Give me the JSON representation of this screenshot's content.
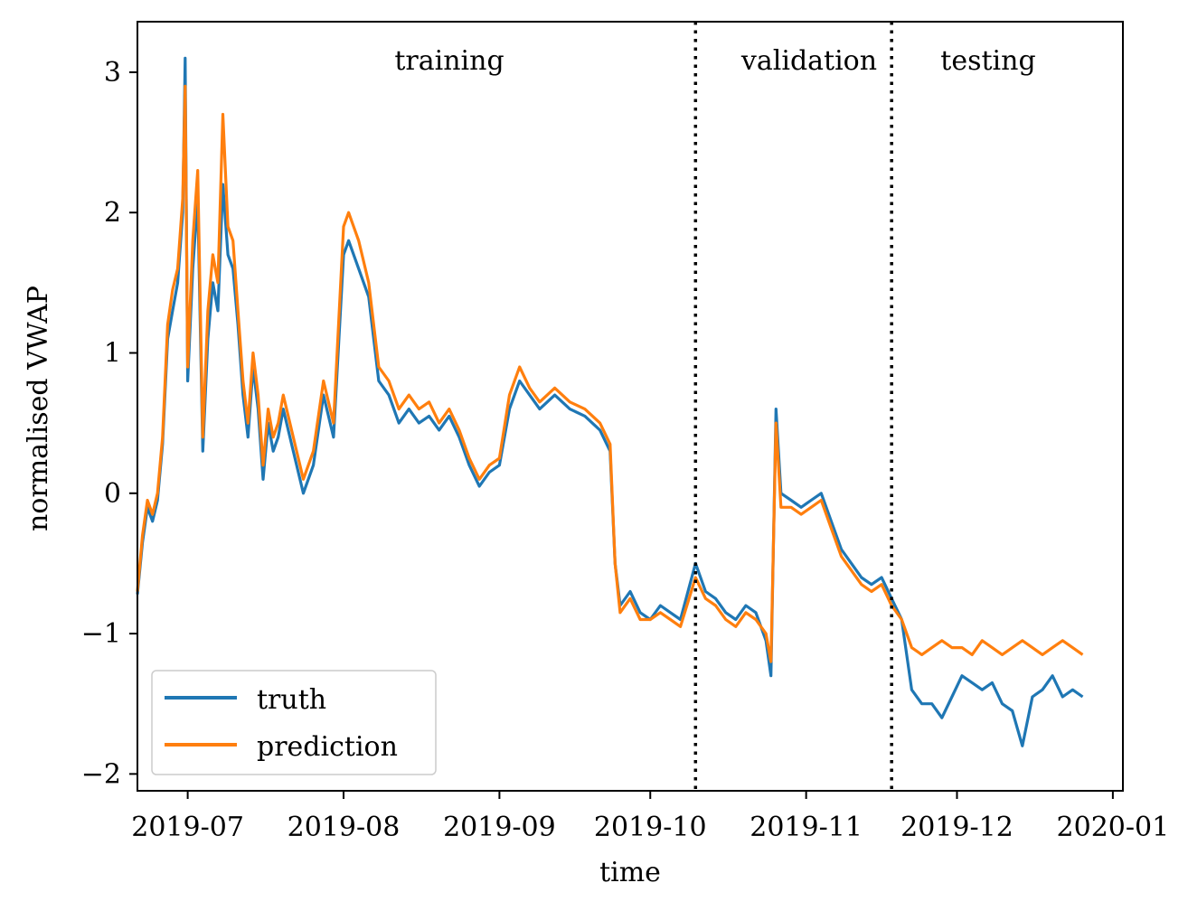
{
  "chart_data": {
    "type": "line",
    "xlabel": "time",
    "ylabel": "normalised VWAP",
    "x_range": [
      "2019-06-21",
      "2020-01-03"
    ],
    "ylim": [
      -2.12,
      3.36
    ],
    "x_ticks": [
      {
        "date": "2019-07-01",
        "label": "2019-07"
      },
      {
        "date": "2019-08-01",
        "label": "2019-08"
      },
      {
        "date": "2019-09-01",
        "label": "2019-09"
      },
      {
        "date": "2019-10-01",
        "label": "2019-10"
      },
      {
        "date": "2019-11-01",
        "label": "2019-11"
      },
      {
        "date": "2019-12-01",
        "label": "2019-12"
      },
      {
        "date": "2020-01-01",
        "label": "2020-01"
      }
    ],
    "y_ticks": [
      {
        "value": 3,
        "label": "3"
      },
      {
        "value": 2,
        "label": "2"
      },
      {
        "value": 1,
        "label": "1"
      },
      {
        "value": 0,
        "label": "0"
      },
      {
        "value": -1,
        "label": "−1"
      },
      {
        "value": -2,
        "label": "−2"
      }
    ],
    "grid": false,
    "legend_position": "lower-left",
    "dividers": [
      "2019-10-10",
      "2019-11-18"
    ],
    "regions": [
      {
        "label": "training"
      },
      {
        "label": "validation"
      },
      {
        "label": "testing"
      }
    ],
    "series": [
      {
        "name": "truth",
        "color": "#1f77b4",
        "points": [
          [
            "2019-06-21",
            -0.72
          ],
          [
            "2019-06-22",
            -0.35
          ],
          [
            "2019-06-23",
            -0.1
          ],
          [
            "2019-06-24",
            -0.2
          ],
          [
            "2019-06-25",
            -0.05
          ],
          [
            "2019-06-26",
            0.35
          ],
          [
            "2019-06-27",
            1.1
          ],
          [
            "2019-06-28",
            1.3
          ],
          [
            "2019-06-29",
            1.5
          ],
          [
            "2019-06-30",
            2.0
          ],
          [
            "2019-06-30T12:00",
            3.1
          ],
          [
            "2019-07-01",
            0.8
          ],
          [
            "2019-07-02",
            1.6
          ],
          [
            "2019-07-03",
            2.1
          ],
          [
            "2019-07-04",
            0.3
          ],
          [
            "2019-07-05",
            1.1
          ],
          [
            "2019-07-06",
            1.5
          ],
          [
            "2019-07-07",
            1.3
          ],
          [
            "2019-07-08",
            2.2
          ],
          [
            "2019-07-09",
            1.7
          ],
          [
            "2019-07-10",
            1.6
          ],
          [
            "2019-07-11",
            1.2
          ],
          [
            "2019-07-12",
            0.7
          ],
          [
            "2019-07-13",
            0.4
          ],
          [
            "2019-07-14",
            0.9
          ],
          [
            "2019-07-15",
            0.6
          ],
          [
            "2019-07-16",
            0.1
          ],
          [
            "2019-07-17",
            0.5
          ],
          [
            "2019-07-18",
            0.3
          ],
          [
            "2019-07-19",
            0.4
          ],
          [
            "2019-07-20",
            0.6
          ],
          [
            "2019-07-22",
            0.3
          ],
          [
            "2019-07-24",
            0.0
          ],
          [
            "2019-07-26",
            0.2
          ],
          [
            "2019-07-28",
            0.7
          ],
          [
            "2019-07-30",
            0.4
          ],
          [
            "2019-08-01",
            1.7
          ],
          [
            "2019-08-02",
            1.8
          ],
          [
            "2019-08-04",
            1.6
          ],
          [
            "2019-08-06",
            1.4
          ],
          [
            "2019-08-08",
            0.8
          ],
          [
            "2019-08-10",
            0.7
          ],
          [
            "2019-08-12",
            0.5
          ],
          [
            "2019-08-14",
            0.6
          ],
          [
            "2019-08-16",
            0.5
          ],
          [
            "2019-08-18",
            0.55
          ],
          [
            "2019-08-20",
            0.45
          ],
          [
            "2019-08-22",
            0.55
          ],
          [
            "2019-08-24",
            0.4
          ],
          [
            "2019-08-26",
            0.2
          ],
          [
            "2019-08-28",
            0.05
          ],
          [
            "2019-08-30",
            0.15
          ],
          [
            "2019-09-01",
            0.2
          ],
          [
            "2019-09-03",
            0.6
          ],
          [
            "2019-09-05",
            0.8
          ],
          [
            "2019-09-07",
            0.7
          ],
          [
            "2019-09-09",
            0.6
          ],
          [
            "2019-09-12",
            0.7
          ],
          [
            "2019-09-15",
            0.6
          ],
          [
            "2019-09-18",
            0.55
          ],
          [
            "2019-09-21",
            0.45
          ],
          [
            "2019-09-23",
            0.3
          ],
          [
            "2019-09-24",
            -0.5
          ],
          [
            "2019-09-25",
            -0.8
          ],
          [
            "2019-09-27",
            -0.7
          ],
          [
            "2019-09-29",
            -0.85
          ],
          [
            "2019-10-01",
            -0.9
          ],
          [
            "2019-10-03",
            -0.8
          ],
          [
            "2019-10-05",
            -0.85
          ],
          [
            "2019-10-07",
            -0.9
          ],
          [
            "2019-10-10",
            -0.5
          ],
          [
            "2019-10-12",
            -0.7
          ],
          [
            "2019-10-14",
            -0.75
          ],
          [
            "2019-10-16",
            -0.85
          ],
          [
            "2019-10-18",
            -0.9
          ],
          [
            "2019-10-20",
            -0.8
          ],
          [
            "2019-10-22",
            -0.85
          ],
          [
            "2019-10-24",
            -1.05
          ],
          [
            "2019-10-25",
            -1.3
          ],
          [
            "2019-10-26",
            0.6
          ],
          [
            "2019-10-27",
            0.0
          ],
          [
            "2019-10-29",
            -0.05
          ],
          [
            "2019-10-31",
            -0.1
          ],
          [
            "2019-11-02",
            -0.05
          ],
          [
            "2019-11-04",
            0.0
          ],
          [
            "2019-11-06",
            -0.2
          ],
          [
            "2019-11-08",
            -0.4
          ],
          [
            "2019-11-10",
            -0.5
          ],
          [
            "2019-11-12",
            -0.6
          ],
          [
            "2019-11-14",
            -0.65
          ],
          [
            "2019-11-16",
            -0.6
          ],
          [
            "2019-11-18",
            -0.75
          ],
          [
            "2019-11-20",
            -0.9
          ],
          [
            "2019-11-22",
            -1.4
          ],
          [
            "2019-11-24",
            -1.5
          ],
          [
            "2019-11-26",
            -1.5
          ],
          [
            "2019-11-28",
            -1.6
          ],
          [
            "2019-11-30",
            -1.45
          ],
          [
            "2019-12-02",
            -1.3
          ],
          [
            "2019-12-04",
            -1.35
          ],
          [
            "2019-12-06",
            -1.4
          ],
          [
            "2019-12-08",
            -1.35
          ],
          [
            "2019-12-10",
            -1.5
          ],
          [
            "2019-12-12",
            -1.55
          ],
          [
            "2019-12-14",
            -1.8
          ],
          [
            "2019-12-16",
            -1.45
          ],
          [
            "2019-12-18",
            -1.4
          ],
          [
            "2019-12-20",
            -1.3
          ],
          [
            "2019-12-22",
            -1.45
          ],
          [
            "2019-12-24",
            -1.4
          ],
          [
            "2019-12-26",
            -1.45
          ]
        ]
      },
      {
        "name": "prediction",
        "color": "#ff7f0e",
        "points": [
          [
            "2019-06-21",
            -0.7
          ],
          [
            "2019-06-22",
            -0.3
          ],
          [
            "2019-06-23",
            -0.05
          ],
          [
            "2019-06-24",
            -0.15
          ],
          [
            "2019-06-25",
            0.0
          ],
          [
            "2019-06-26",
            0.4
          ],
          [
            "2019-06-27",
            1.2
          ],
          [
            "2019-06-28",
            1.45
          ],
          [
            "2019-06-29",
            1.6
          ],
          [
            "2019-06-30",
            2.1
          ],
          [
            "2019-06-30T12:00",
            2.9
          ],
          [
            "2019-07-01",
            0.9
          ],
          [
            "2019-07-02",
            1.8
          ],
          [
            "2019-07-03",
            2.3
          ],
          [
            "2019-07-04",
            0.4
          ],
          [
            "2019-07-05",
            1.3
          ],
          [
            "2019-07-06",
            1.7
          ],
          [
            "2019-07-07",
            1.5
          ],
          [
            "2019-07-08",
            2.7
          ],
          [
            "2019-07-09",
            1.9
          ],
          [
            "2019-07-10",
            1.8
          ],
          [
            "2019-07-11",
            1.3
          ],
          [
            "2019-07-12",
            0.8
          ],
          [
            "2019-07-13",
            0.5
          ],
          [
            "2019-07-14",
            1.0
          ],
          [
            "2019-07-15",
            0.7
          ],
          [
            "2019-07-16",
            0.2
          ],
          [
            "2019-07-17",
            0.6
          ],
          [
            "2019-07-18",
            0.4
          ],
          [
            "2019-07-19",
            0.5
          ],
          [
            "2019-07-20",
            0.7
          ],
          [
            "2019-07-22",
            0.4
          ],
          [
            "2019-07-24",
            0.1
          ],
          [
            "2019-07-26",
            0.3
          ],
          [
            "2019-07-28",
            0.8
          ],
          [
            "2019-07-30",
            0.5
          ],
          [
            "2019-08-01",
            1.9
          ],
          [
            "2019-08-02",
            2.0
          ],
          [
            "2019-08-04",
            1.8
          ],
          [
            "2019-08-06",
            1.5
          ],
          [
            "2019-08-08",
            0.9
          ],
          [
            "2019-08-10",
            0.8
          ],
          [
            "2019-08-12",
            0.6
          ],
          [
            "2019-08-14",
            0.7
          ],
          [
            "2019-08-16",
            0.6
          ],
          [
            "2019-08-18",
            0.65
          ],
          [
            "2019-08-20",
            0.5
          ],
          [
            "2019-08-22",
            0.6
          ],
          [
            "2019-08-24",
            0.45
          ],
          [
            "2019-08-26",
            0.25
          ],
          [
            "2019-08-28",
            0.1
          ],
          [
            "2019-08-30",
            0.2
          ],
          [
            "2019-09-01",
            0.25
          ],
          [
            "2019-09-03",
            0.7
          ],
          [
            "2019-09-05",
            0.9
          ],
          [
            "2019-09-07",
            0.75
          ],
          [
            "2019-09-09",
            0.65
          ],
          [
            "2019-09-12",
            0.75
          ],
          [
            "2019-09-15",
            0.65
          ],
          [
            "2019-09-18",
            0.6
          ],
          [
            "2019-09-21",
            0.5
          ],
          [
            "2019-09-23",
            0.35
          ],
          [
            "2019-09-24",
            -0.5
          ],
          [
            "2019-09-25",
            -0.85
          ],
          [
            "2019-09-27",
            -0.75
          ],
          [
            "2019-09-29",
            -0.9
          ],
          [
            "2019-10-01",
            -0.9
          ],
          [
            "2019-10-03",
            -0.85
          ],
          [
            "2019-10-05",
            -0.9
          ],
          [
            "2019-10-07",
            -0.95
          ],
          [
            "2019-10-10",
            -0.6
          ],
          [
            "2019-10-12",
            -0.75
          ],
          [
            "2019-10-14",
            -0.8
          ],
          [
            "2019-10-16",
            -0.9
          ],
          [
            "2019-10-18",
            -0.95
          ],
          [
            "2019-10-20",
            -0.85
          ],
          [
            "2019-10-22",
            -0.9
          ],
          [
            "2019-10-24",
            -1.0
          ],
          [
            "2019-10-25",
            -1.2
          ],
          [
            "2019-10-26",
            0.5
          ],
          [
            "2019-10-27",
            -0.1
          ],
          [
            "2019-10-29",
            -0.1
          ],
          [
            "2019-10-31",
            -0.15
          ],
          [
            "2019-11-02",
            -0.1
          ],
          [
            "2019-11-04",
            -0.05
          ],
          [
            "2019-11-06",
            -0.25
          ],
          [
            "2019-11-08",
            -0.45
          ],
          [
            "2019-11-10",
            -0.55
          ],
          [
            "2019-11-12",
            -0.65
          ],
          [
            "2019-11-14",
            -0.7
          ],
          [
            "2019-11-16",
            -0.65
          ],
          [
            "2019-11-18",
            -0.8
          ],
          [
            "2019-11-20",
            -0.9
          ],
          [
            "2019-11-22",
            -1.1
          ],
          [
            "2019-11-24",
            -1.15
          ],
          [
            "2019-11-26",
            -1.1
          ],
          [
            "2019-11-28",
            -1.05
          ],
          [
            "2019-11-30",
            -1.1
          ],
          [
            "2019-12-02",
            -1.1
          ],
          [
            "2019-12-04",
            -1.15
          ],
          [
            "2019-12-06",
            -1.05
          ],
          [
            "2019-12-08",
            -1.1
          ],
          [
            "2019-12-10",
            -1.15
          ],
          [
            "2019-12-12",
            -1.1
          ],
          [
            "2019-12-14",
            -1.05
          ],
          [
            "2019-12-16",
            -1.1
          ],
          [
            "2019-12-18",
            -1.15
          ],
          [
            "2019-12-20",
            -1.1
          ],
          [
            "2019-12-22",
            -1.05
          ],
          [
            "2019-12-24",
            -1.1
          ],
          [
            "2019-12-26",
            -1.15
          ]
        ]
      }
    ]
  }
}
